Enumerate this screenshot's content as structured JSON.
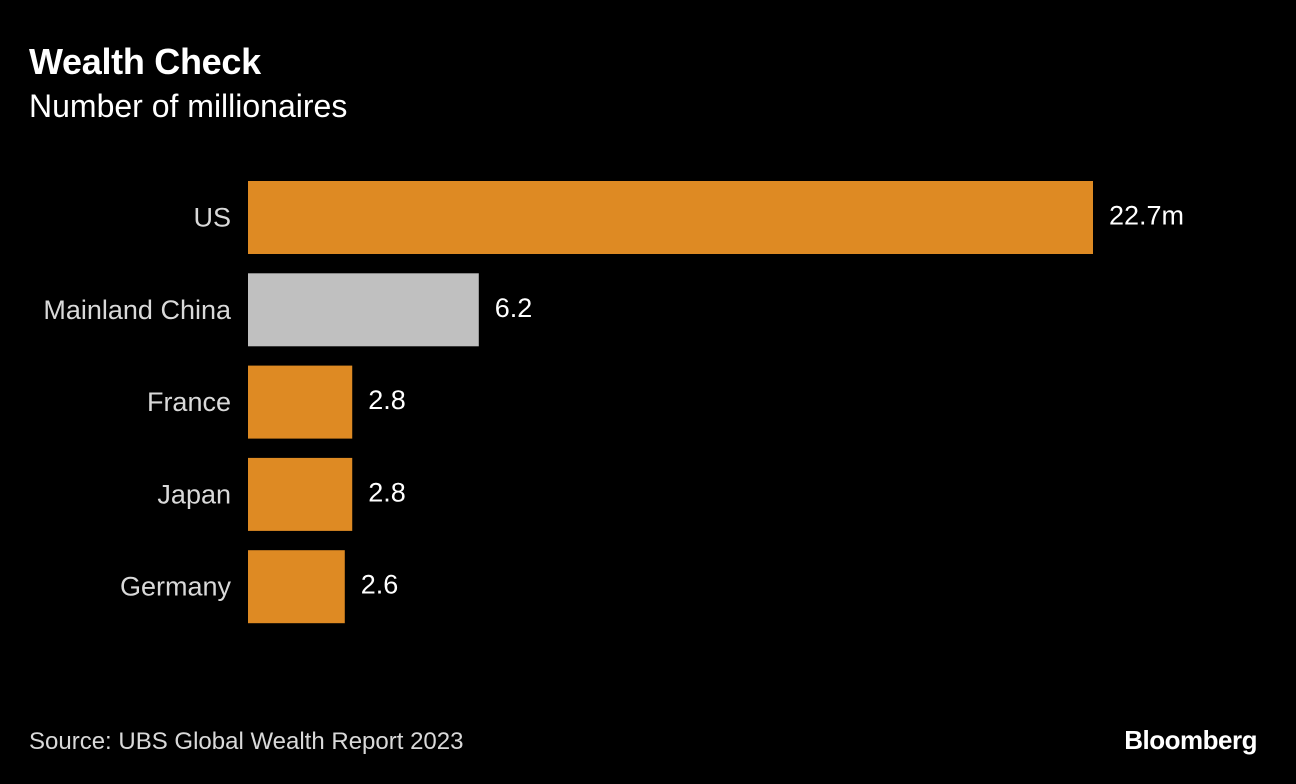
{
  "colors": {
    "background": "#000000",
    "accent_bar": "#de8a23",
    "highlight_bar": "#c0c0c0",
    "text": "#ffffff",
    "muted_text": "#d9d9d9"
  },
  "chart_data": {
    "type": "bar",
    "orientation": "horizontal",
    "title": "Wealth Check",
    "subtitle": "Number of millionaires",
    "unit": "millions",
    "categories": [
      "US",
      "Mainland China",
      "France",
      "Japan",
      "Germany"
    ],
    "values": [
      22.7,
      6.2,
      2.8,
      2.8,
      2.6
    ],
    "value_labels": [
      "22.7m",
      "6.2",
      "2.8",
      "2.8",
      "2.6"
    ],
    "highlight": [
      "Mainland China"
    ],
    "xlim": [
      0,
      22.7
    ],
    "grid": false,
    "xlabel": "",
    "ylabel": ""
  },
  "footer": {
    "source": "Source: UBS Global Wealth Report 2023",
    "brand": "Bloomberg"
  }
}
